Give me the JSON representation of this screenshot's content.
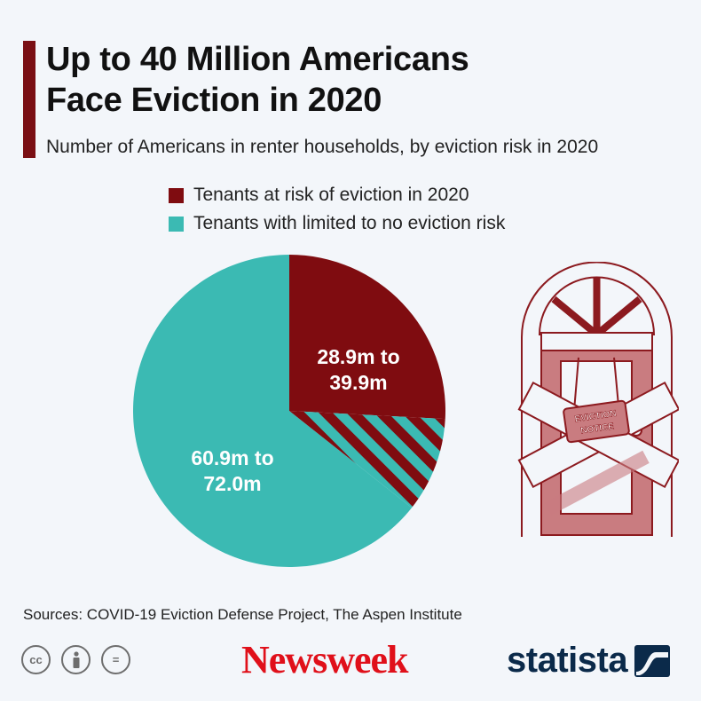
{
  "header": {
    "title_line1": "Up to 40 Million Americans",
    "title_line2": "Face Eviction in 2020",
    "subtitle": "Number of Americans in renter households, by eviction risk in 2020"
  },
  "colors": {
    "accent": "#7a0f14",
    "at_risk": "#7f0c10",
    "limited_risk": "#3bbab3"
  },
  "legend": [
    {
      "label": "Tenants at risk of eviction in 2020",
      "color": "#7f0c10"
    },
    {
      "label": "Tenants with limited to no eviction risk",
      "color": "#3bbab3"
    }
  ],
  "chart_data": {
    "type": "pie",
    "title": "Up to 40 Million Americans Face Eviction in 2020",
    "subtitle": "Number of Americans in renter households, by eviction risk in 2020",
    "unit": "million people",
    "slices": [
      {
        "name": "Tenants at risk of eviction in 2020",
        "min": 28.9,
        "max": 39.9,
        "label": "28.9m to 39.9m",
        "color": "#7f0c10"
      },
      {
        "name": "Tenants with limited to no eviction risk",
        "min": 60.9,
        "max": 72.0,
        "label": "60.9m to 72.0m",
        "color": "#3bbab3"
      }
    ],
    "uncertainty_band": "striped wedge covering the range between the minimum and maximum at-risk estimates"
  },
  "illustration": {
    "sign_line1": "EVICTION",
    "sign_line2": "NOTICE",
    "icon": "boarded-door-icon"
  },
  "footer": {
    "sources": "Sources: COVID-19 Eviction Defense Project, The Aspen Institute",
    "newsweek": "Newsweek",
    "statista": "statista",
    "license_icons": [
      "cc-icon",
      "by-icon",
      "nd-icon"
    ],
    "cc_text": "cc",
    "nd_text": "="
  }
}
